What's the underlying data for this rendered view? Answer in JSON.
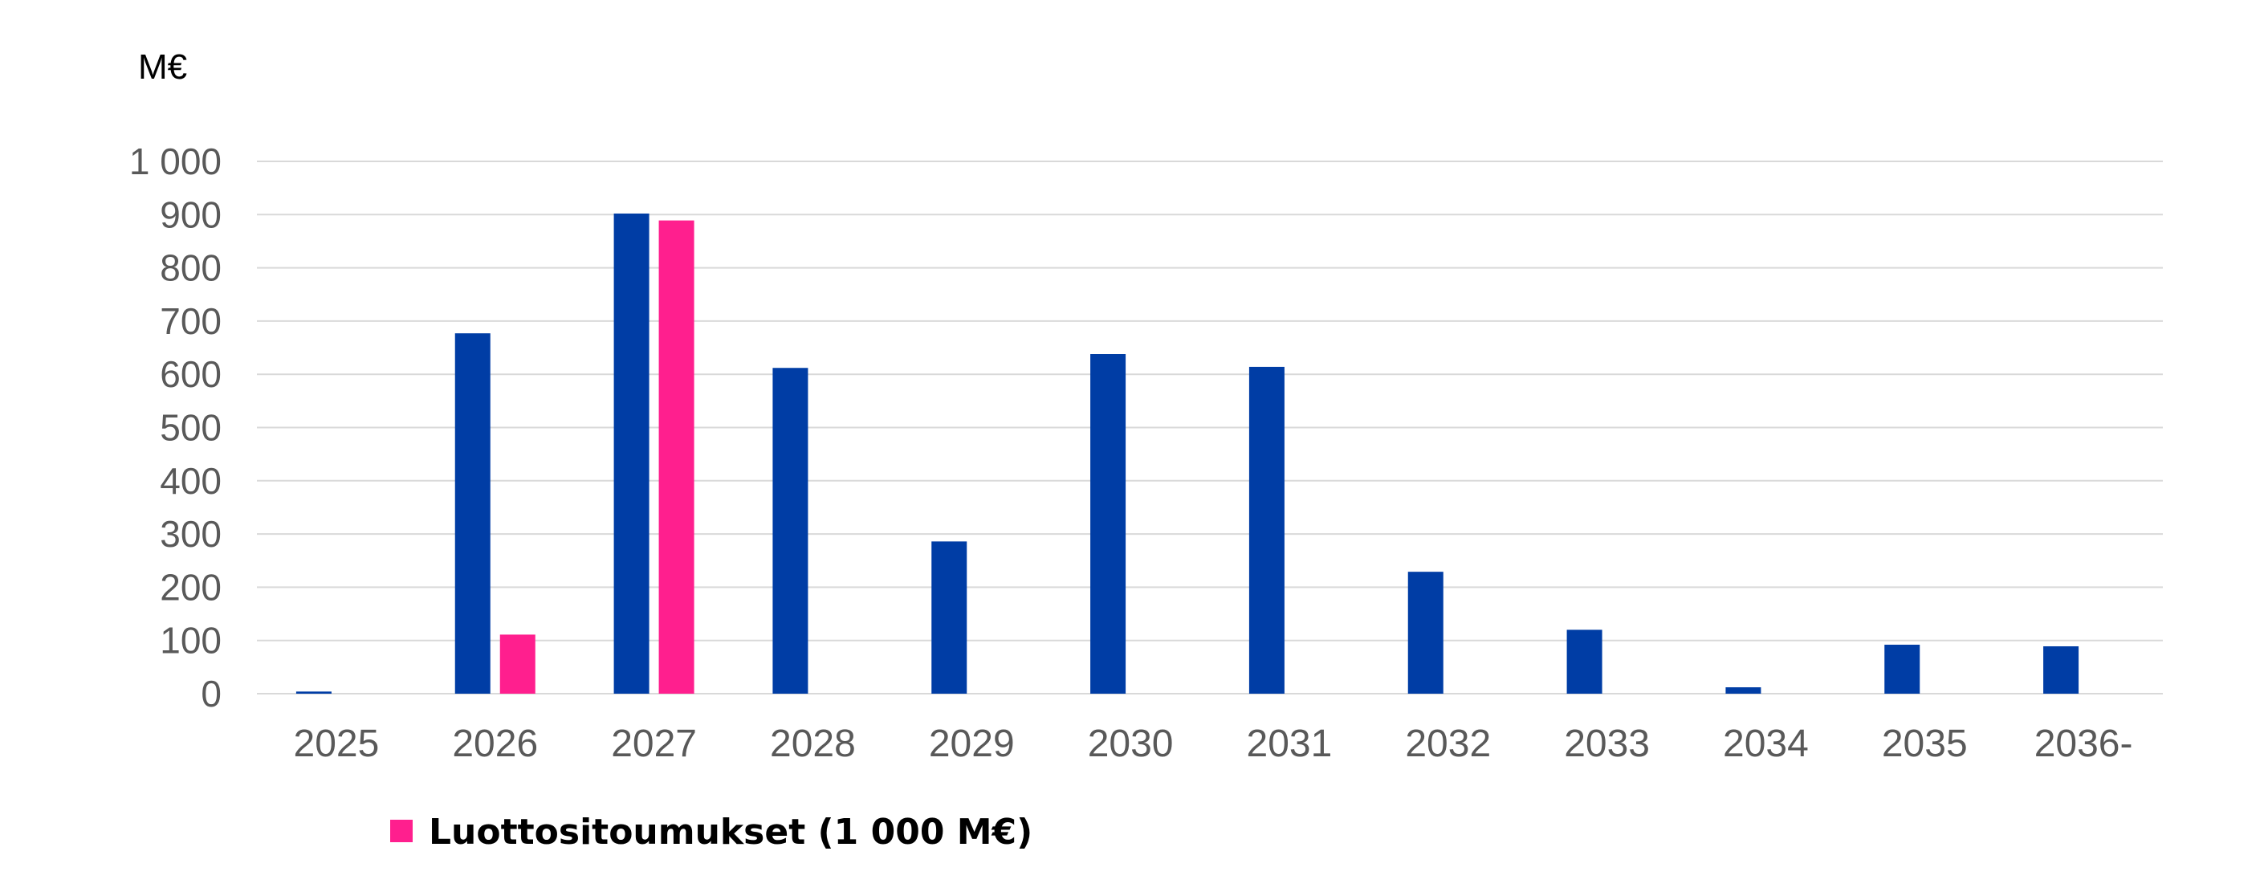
{
  "unit_label": "M€",
  "colors": {
    "series_1": "#003DA5",
    "series_2": "#FF1F8E",
    "grid": "#D9D9D9",
    "tick_text": "#595959"
  },
  "chart_data": {
    "type": "bar",
    "title": "",
    "xlabel": "",
    "ylabel": "M€",
    "ylim": [
      0,
      1000
    ],
    "yticks": [
      0,
      100,
      200,
      300,
      400,
      500,
      600,
      700,
      800,
      900,
      1000
    ],
    "ytick_labels": [
      "0",
      "100",
      "200",
      "300",
      "400",
      "500",
      "600",
      "700",
      "800",
      "900",
      "1 000"
    ],
    "grid": true,
    "legend_position": "bottom-left",
    "categories": [
      "2025",
      "2026",
      "2027",
      "2028",
      "2029",
      "2030",
      "2031",
      "2032",
      "2033",
      "2034",
      "2035",
      "2036-"
    ],
    "series": [
      {
        "color": "#003DA5",
        "values": [
          4,
          677,
          902,
          612,
          286,
          638,
          614,
          229,
          120,
          12,
          92,
          89
        ]
      },
      {
        "name": "Luottositoumukset (1 000 M€)",
        "color": "#FF1F8E",
        "values": [
          0,
          111,
          889,
          0,
          0,
          0,
          0,
          0,
          0,
          0,
          0,
          0
        ]
      }
    ]
  }
}
